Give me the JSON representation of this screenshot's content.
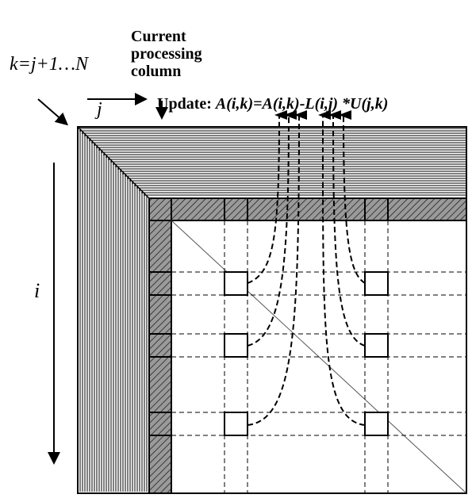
{
  "labels": {
    "k_range": "k=j+1…N",
    "current_line1": "Current",
    "current_line2": "processing",
    "current_line3": "column",
    "j": "j",
    "i": "i",
    "update_prefix": "Update: ",
    "update_formula": "A(i,k)=A(i,k)-L(i,j) *U(j,k)"
  },
  "colors": {
    "line": "#000000",
    "shaded": "#7a7a7a",
    "background": "#ffffff"
  }
}
